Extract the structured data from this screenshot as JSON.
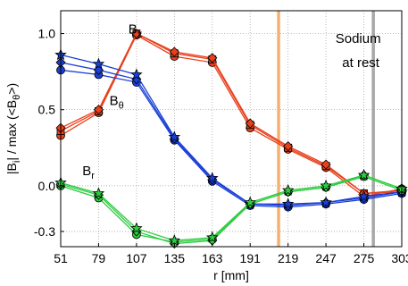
{
  "chart_data": {
    "type": "line",
    "xlabel": "r [mm]",
    "ylabel_main": "|B",
    "ylabel_sub": "i",
    "ylabel_mid": "| / max (<B",
    "ylabel_sub2": "θ",
    "ylabel_end": ">)",
    "x": [
      51,
      79,
      107,
      135,
      163,
      191,
      219,
      247,
      275,
      303
    ],
    "xlim": [
      51,
      303
    ],
    "ylim": [
      -0.4,
      1.15
    ],
    "xticks": [
      "51",
      "79",
      "107",
      "135",
      "163",
      "191",
      "219",
      "247",
      "275",
      "303"
    ],
    "yticks": [
      {
        "value": 1.0,
        "label": "1.0"
      },
      {
        "value": 0.5,
        "label": "0.5"
      },
      {
        "value": 0.0,
        "label": "0.0"
      },
      {
        "value": -0.3,
        "label": "-0.3"
      }
    ],
    "grid": "dotted",
    "colors": {
      "x": "#e8401c",
      "theta": "#1a3fd6",
      "r": "#2ecc40",
      "orange": "#f5b070",
      "gray": "#a8a8a8"
    },
    "vlines": [
      {
        "x": 212,
        "color": "#f5b070"
      },
      {
        "x": 282,
        "color": "#a8a8a8"
      }
    ],
    "annotations": [
      {
        "id": "bx",
        "main": "B",
        "sub": "x",
        "x": 101,
        "y": 1.0
      },
      {
        "id": "btheta",
        "main": "B",
        "sub": "θ",
        "x": 87,
        "y": 0.53
      },
      {
        "id": "br",
        "main": "B",
        "sub": "r",
        "x": 67,
        "y": 0.07
      },
      {
        "id": "sodium1",
        "main": "Sodium",
        "sub": "",
        "x": 254,
        "y": 0.94
      },
      {
        "id": "sodium2",
        "main": "at rest",
        "sub": "",
        "x": 259,
        "y": 0.78
      }
    ],
    "series": [
      {
        "group": "x",
        "marker": "circle",
        "values": [
          0.33,
          0.48,
          0.99,
          0.85,
          0.81,
          0.38,
          0.24,
          0.12,
          -0.07,
          -0.02
        ]
      },
      {
        "group": "x",
        "marker": "square",
        "values": [
          0.36,
          0.49,
          1.0,
          0.87,
          0.83,
          0.4,
          0.25,
          0.13,
          -0.05,
          -0.03
        ]
      },
      {
        "group": "x",
        "marker": "diamond",
        "values": [
          0.38,
          0.5,
          1.0,
          0.88,
          0.84,
          0.41,
          0.26,
          0.14,
          -0.05,
          -0.04
        ]
      },
      {
        "group": "theta",
        "marker": "circle",
        "values": [
          0.76,
          0.73,
          0.68,
          0.3,
          0.03,
          -0.13,
          -0.14,
          -0.12,
          -0.09,
          -0.05
        ]
      },
      {
        "group": "theta",
        "marker": "diamond",
        "values": [
          0.81,
          0.76,
          0.7,
          0.31,
          0.04,
          -0.12,
          -0.13,
          -0.11,
          -0.08,
          -0.04
        ]
      },
      {
        "group": "theta",
        "marker": "star",
        "values": [
          0.86,
          0.8,
          0.73,
          0.32,
          0.05,
          -0.12,
          -0.12,
          -0.11,
          -0.07,
          -0.04
        ]
      },
      {
        "group": "r",
        "marker": "circle",
        "values": [
          0.0,
          -0.08,
          -0.32,
          -0.37,
          -0.35,
          -0.12,
          -0.04,
          -0.01,
          0.06,
          -0.03
        ]
      },
      {
        "group": "r",
        "marker": "diamond",
        "values": [
          0.01,
          -0.06,
          -0.3,
          -0.38,
          -0.36,
          -0.12,
          -0.04,
          -0.01,
          0.07,
          -0.02
        ]
      },
      {
        "group": "r",
        "marker": "star",
        "values": [
          0.02,
          -0.05,
          -0.28,
          -0.36,
          -0.34,
          -0.11,
          -0.03,
          0.0,
          0.07,
          -0.02
        ]
      }
    ]
  }
}
